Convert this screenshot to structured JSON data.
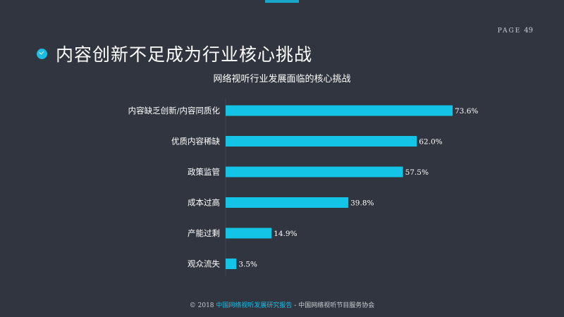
{
  "page": {
    "label": "PAGE",
    "number": "49"
  },
  "title": "内容创新不足成为行业核心挑战",
  "footer": {
    "copyright": "© 2018",
    "report": "中国网络视听发展研究报告",
    "separator": "-",
    "org": "中国网络视听节目服务协会"
  },
  "colors": {
    "bar": "#13c4e6",
    "background": "#30353f",
    "accent": "#1bbde3"
  },
  "chart_data": {
    "type": "bar",
    "orientation": "horizontal",
    "title": "网络视听行业发展面临的核心挑战",
    "categories": [
      "内容缺乏创新/内容同质化",
      "优质内容稀缺",
      "政策监管",
      "成本过高",
      "产能过剩",
      "观众流失"
    ],
    "values": [
      73.6,
      62.0,
      57.5,
      39.8,
      14.9,
      3.5
    ],
    "value_labels": [
      "73.6%",
      "62.0%",
      "57.5%",
      "39.8%",
      "14.9%",
      "3.5%"
    ],
    "xlim": [
      0,
      73.6
    ],
    "grid": false,
    "legend": "none"
  }
}
